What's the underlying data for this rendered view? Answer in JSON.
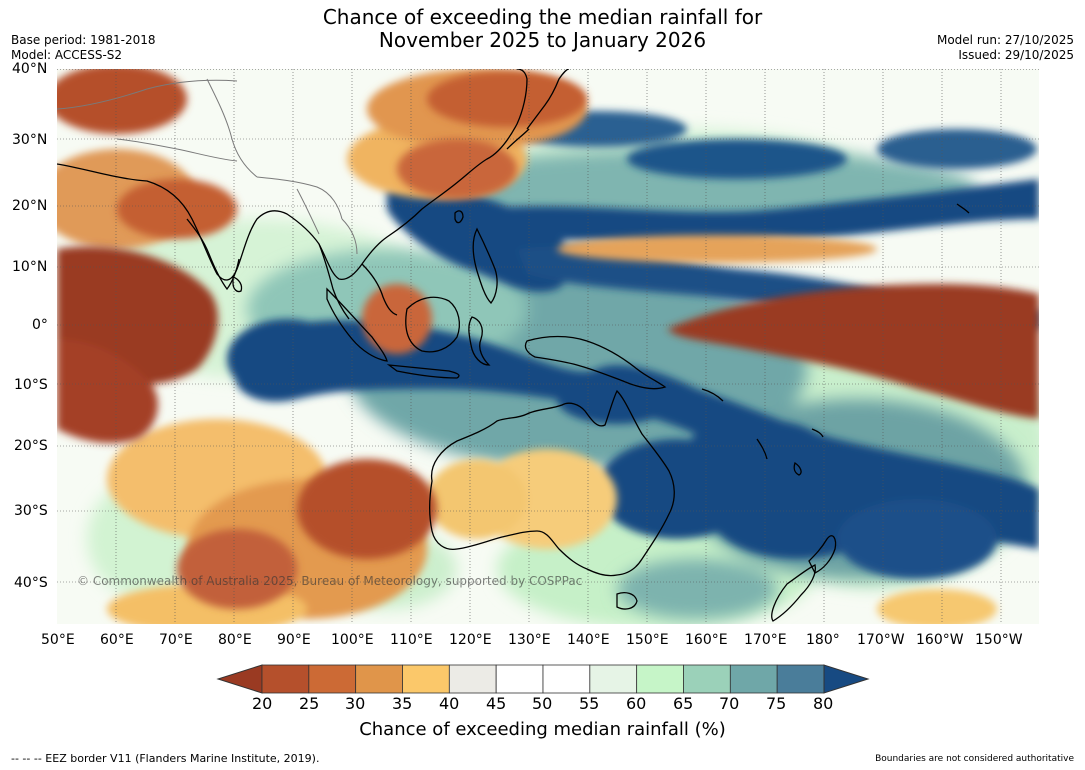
{
  "title": {
    "line1": "Chance of exceeding the median rainfall for",
    "line2": "November 2025 to January 2026"
  },
  "meta_left": {
    "base_period": "Base period: 1981-2018",
    "model": "Model: ACCESS-S2"
  },
  "meta_right": {
    "model_run": "Model run: 27/10/2025",
    "issued": "Issued: 29/10/2025"
  },
  "map": {
    "lat_labels": [
      "40°N",
      "30°N",
      "20°N",
      "10°N",
      "0°",
      "10°S",
      "20°S",
      "30°S",
      "40°S"
    ],
    "lon_labels": [
      "50°E",
      "60°E",
      "70°E",
      "80°E",
      "90°E",
      "100°E",
      "110°E",
      "120°E",
      "130°E",
      "140°E",
      "150°E",
      "160°E",
      "170°E",
      "180°",
      "170°W",
      "160°W",
      "150°W"
    ],
    "copyright": "© Commonwealth of Australia 2025, Bureau of Meteorology, supported by COSPPac"
  },
  "colorbar": {
    "ticks": [
      "20",
      "25",
      "30",
      "35",
      "40",
      "45",
      "50",
      "55",
      "60",
      "65",
      "70",
      "75",
      "80"
    ],
    "colors": [
      "#9a3a22",
      "#b5502c",
      "#cc6a35",
      "#e0954a",
      "#fbc86a",
      "#ecebe6",
      "#ffffff",
      "#ffffff",
      "#e6f4e6",
      "#c6f5c8",
      "#9bd1b9",
      "#6fa7a8",
      "#4a7d9a",
      "#174a82"
    ],
    "label": "Chance of exceeding median rainfall (%)"
  },
  "footer": {
    "left": "--  --  -- EEZ border V11 (Flanders Marine Institute, 2019).",
    "right": "Boundaries are not considered authoritative"
  }
}
